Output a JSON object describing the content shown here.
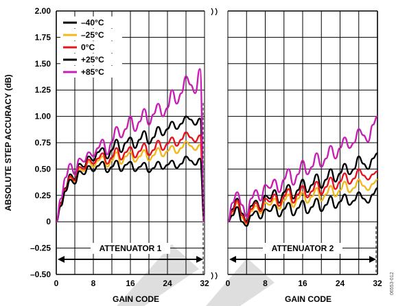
{
  "chart_data": {
    "type": "line",
    "title": "",
    "ylabel": "ABSOLUTE STEP ACCURACY (dB)",
    "ylim": [
      -0.5,
      2.0
    ],
    "yticks": [
      "2.00",
      "1.75",
      "1.50",
      "1.25",
      "1.00",
      "0.75",
      "0.50",
      "0.25",
      "0",
      "–0.25",
      "–0.50"
    ],
    "grid": true,
    "legend_position": "top-left",
    "figure_id": "06553-012",
    "panels": [
      {
        "name": "ATTENUATOR 1",
        "xlabel": "GAIN CODE",
        "xlim": [
          0,
          32
        ],
        "xticks": [
          "0",
          "8",
          "16",
          "24",
          "32"
        ],
        "series": [
          {
            "name": "–40°C",
            "color": "#000000",
            "x": [
              0,
              1,
              2,
              3,
              4,
              5,
              6,
              7,
              8,
              9,
              10,
              11,
              12,
              13,
              14,
              15,
              16,
              17,
              18,
              19,
              20,
              21,
              22,
              23,
              24,
              25,
              26,
              27,
              28,
              29,
              30,
              31,
              32
            ],
            "values": [
              0.0,
              0.18,
              0.32,
              0.45,
              0.4,
              0.55,
              0.52,
              0.62,
              0.58,
              0.66,
              0.7,
              0.6,
              0.68,
              0.78,
              0.66,
              0.75,
              0.8,
              0.7,
              0.78,
              0.86,
              0.74,
              0.8,
              0.9,
              0.82,
              0.88,
              0.95,
              0.88,
              0.93,
              1.0,
              0.97,
              0.92,
              0.98,
              0.0
            ]
          },
          {
            "name": "–25°C",
            "color": "#f2b81c",
            "x": [
              0,
              1,
              2,
              3,
              4,
              5,
              6,
              7,
              8,
              9,
              10,
              11,
              12,
              13,
              14,
              15,
              16,
              17,
              18,
              19,
              20,
              21,
              22,
              23,
              24,
              25,
              26,
              27,
              28,
              29,
              30,
              31,
              32
            ],
            "values": [
              0.0,
              0.16,
              0.3,
              0.42,
              0.38,
              0.5,
              0.48,
              0.57,
              0.52,
              0.58,
              0.62,
              0.52,
              0.58,
              0.66,
              0.55,
              0.62,
              0.66,
              0.57,
              0.62,
              0.68,
              0.58,
              0.63,
              0.7,
              0.62,
              0.67,
              0.72,
              0.65,
              0.7,
              0.76,
              0.72,
              0.68,
              0.73,
              0.0
            ]
          },
          {
            "name": "0°C",
            "color": "#e6141e",
            "x": [
              0,
              1,
              2,
              3,
              4,
              5,
              6,
              7,
              8,
              9,
              10,
              11,
              12,
              13,
              14,
              15,
              16,
              17,
              18,
              19,
              20,
              21,
              22,
              23,
              24,
              25,
              26,
              27,
              28,
              29,
              30,
              31,
              32
            ],
            "values": [
              0.0,
              0.17,
              0.31,
              0.43,
              0.39,
              0.52,
              0.5,
              0.59,
              0.55,
              0.6,
              0.65,
              0.55,
              0.61,
              0.7,
              0.59,
              0.66,
              0.71,
              0.61,
              0.67,
              0.74,
              0.63,
              0.68,
              0.77,
              0.68,
              0.74,
              0.8,
              0.72,
              0.78,
              0.85,
              0.8,
              0.76,
              0.82,
              0.0
            ]
          },
          {
            "name": "+25°C",
            "color": "#000000",
            "x": [
              0,
              1,
              2,
              3,
              4,
              5,
              6,
              7,
              8,
              9,
              10,
              11,
              12,
              13,
              14,
              15,
              16,
              17,
              18,
              19,
              20,
              21,
              22,
              23,
              24,
              25,
              26,
              27,
              28,
              29,
              30,
              31,
              32
            ],
            "values": [
              0.0,
              0.15,
              0.29,
              0.4,
              0.36,
              0.48,
              0.45,
              0.53,
              0.48,
              0.53,
              0.57,
              0.47,
              0.52,
              0.58,
              0.48,
              0.54,
              0.57,
              0.48,
              0.52,
              0.56,
              0.47,
              0.51,
              0.57,
              0.5,
              0.54,
              0.58,
              0.51,
              0.55,
              0.62,
              0.58,
              0.54,
              0.6,
              0.0
            ]
          },
          {
            "name": "+85°C",
            "color": "#c81eb4",
            "x": [
              0,
              1,
              2,
              3,
              4,
              5,
              6,
              7,
              8,
              9,
              10,
              11,
              12,
              13,
              14,
              15,
              16,
              17,
              18,
              19,
              20,
              21,
              22,
              23,
              24,
              25,
              26,
              27,
              28,
              29,
              30,
              31,
              32
            ],
            "values": [
              0.0,
              0.22,
              0.42,
              0.55,
              0.45,
              0.6,
              0.57,
              0.66,
              0.62,
              0.7,
              0.78,
              0.64,
              0.76,
              0.9,
              0.8,
              0.88,
              1.0,
              0.86,
              0.95,
              1.07,
              0.92,
              1.02,
              1.12,
              1.0,
              1.08,
              1.25,
              1.12,
              1.22,
              1.38,
              1.3,
              1.22,
              1.45,
              0.0
            ]
          }
        ]
      },
      {
        "name": "ATTENUATOR 2",
        "xlabel": "GAIN CODE",
        "xlim": [
          0,
          32
        ],
        "xticks": [
          "0",
          "8",
          "16",
          "24",
          "32"
        ],
        "series": [
          {
            "name": "–40°C",
            "color": "#000000",
            "x": [
              0,
              1,
              2,
              3,
              4,
              5,
              6,
              7,
              8,
              9,
              10,
              11,
              12,
              13,
              14,
              15,
              16,
              17,
              18,
              19,
              20,
              21,
              22,
              23,
              24,
              25,
              26,
              27,
              28,
              29,
              30,
              31,
              32
            ],
            "values": [
              0.0,
              0.12,
              0.22,
              0.08,
              0.0,
              0.15,
              0.2,
              0.12,
              0.25,
              0.22,
              0.3,
              0.18,
              0.28,
              0.35,
              0.22,
              0.3,
              0.4,
              0.28,
              0.35,
              0.45,
              0.32,
              0.4,
              0.5,
              0.38,
              0.46,
              0.55,
              0.45,
              0.5,
              0.62,
              0.55,
              0.5,
              0.6,
              0.65
            ]
          },
          {
            "name": "–25°C",
            "color": "#f2b81c",
            "x": [
              0,
              1,
              2,
              3,
              4,
              5,
              6,
              7,
              8,
              9,
              10,
              11,
              12,
              13,
              14,
              15,
              16,
              17,
              18,
              19,
              20,
              21,
              22,
              23,
              24,
              25,
              26,
              27,
              28,
              29,
              30,
              31,
              32
            ],
            "values": [
              0.0,
              0.08,
              0.18,
              0.04,
              -0.02,
              0.1,
              0.15,
              0.08,
              0.18,
              0.16,
              0.22,
              0.12,
              0.2,
              0.26,
              0.14,
              0.22,
              0.28,
              0.18,
              0.24,
              0.32,
              0.2,
              0.26,
              0.34,
              0.24,
              0.3,
              0.38,
              0.28,
              0.32,
              0.4,
              0.34,
              0.3,
              0.36,
              0.4
            ]
          },
          {
            "name": "0°C",
            "color": "#e6141e",
            "x": [
              0,
              1,
              2,
              3,
              4,
              5,
              6,
              7,
              8,
              9,
              10,
              11,
              12,
              13,
              14,
              15,
              16,
              17,
              18,
              19,
              20,
              21,
              22,
              23,
              24,
              25,
              26,
              27,
              28,
              29,
              30,
              31,
              32
            ],
            "values": [
              0.0,
              0.1,
              0.2,
              0.06,
              -0.01,
              0.12,
              0.18,
              0.1,
              0.22,
              0.19,
              0.26,
              0.15,
              0.24,
              0.31,
              0.18,
              0.26,
              0.34,
              0.23,
              0.29,
              0.38,
              0.26,
              0.33,
              0.42,
              0.31,
              0.38,
              0.46,
              0.36,
              0.41,
              0.5,
              0.44,
              0.4,
              0.45,
              0.48
            ]
          },
          {
            "name": "+25°C",
            "color": "#000000",
            "x": [
              0,
              1,
              2,
              3,
              4,
              5,
              6,
              7,
              8,
              9,
              10,
              11,
              12,
              13,
              14,
              15,
              16,
              17,
              18,
              19,
              20,
              21,
              22,
              23,
              24,
              25,
              26,
              27,
              28,
              29,
              30,
              31,
              32
            ],
            "values": [
              0.0,
              0.06,
              0.14,
              0.0,
              -0.04,
              0.06,
              0.1,
              0.03,
              0.12,
              0.1,
              0.16,
              0.05,
              0.12,
              0.18,
              0.06,
              0.13,
              0.2,
              0.08,
              0.14,
              0.22,
              0.1,
              0.16,
              0.24,
              0.13,
              0.19,
              0.26,
              0.16,
              0.2,
              0.28,
              0.22,
              0.18,
              0.26,
              0.32
            ]
          },
          {
            "name": "+85°C",
            "color": "#c81eb4",
            "x": [
              0,
              1,
              2,
              3,
              4,
              5,
              6,
              7,
              8,
              9,
              10,
              11,
              12,
              13,
              14,
              15,
              16,
              17,
              18,
              19,
              20,
              21,
              22,
              23,
              24,
              25,
              26,
              27,
              28,
              29,
              30,
              31,
              32
            ],
            "values": [
              0.0,
              0.18,
              0.28,
              0.16,
              0.05,
              0.22,
              0.3,
              0.2,
              0.35,
              0.32,
              0.4,
              0.28,
              0.4,
              0.5,
              0.35,
              0.45,
              0.58,
              0.45,
              0.52,
              0.65,
              0.52,
              0.6,
              0.72,
              0.6,
              0.7,
              0.8,
              0.7,
              0.75,
              0.88,
              0.82,
              0.76,
              0.92,
              1.0
            ]
          }
        ]
      }
    ]
  }
}
